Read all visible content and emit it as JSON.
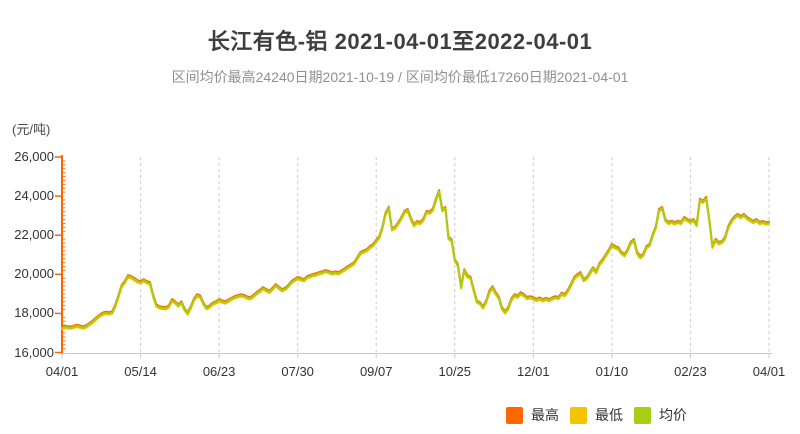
{
  "chart_data": {
    "type": "line",
    "title": "长江有色-铝 2021-04-01至2022-04-01",
    "subtitle": "区间均价最高24240日期2021-10-19 / 区间均价最低17260日期2021-04-01",
    "ylabel": "(元/吨)",
    "ylim": [
      16000,
      26000
    ],
    "y_tick_step": 2000,
    "y_tick_labels": [
      "16,000",
      "18,000",
      "20,000",
      "22,000",
      "24,000",
      "26,000"
    ],
    "x_tick_labels": [
      "04/01",
      "05/14",
      "06/23",
      "07/30",
      "09/07",
      "10/25",
      "12/01",
      "01/10",
      "02/23",
      "04/01"
    ],
    "x_tick_every_n_points": 25,
    "grid": {
      "vertical_dashed": true,
      "horizontal": false
    },
    "legend_position": "bottom-right",
    "axis_colors": {
      "y_axis": "#ff6600",
      "x_axis": "#cccccc",
      "gridline": "#cccccc"
    },
    "annotations": {
      "max_avg": {
        "value": 24240,
        "date": "2021-10-19"
      },
      "min_avg": {
        "value": 17260,
        "date": "2021-04-01"
      }
    },
    "spread_estimate": 60,
    "series": [
      {
        "key": "high",
        "name": "最高",
        "color": "#ff6600",
        "derived": "avg_values + spread_estimate"
      },
      {
        "key": "low",
        "name": "最低",
        "color": "#f5c400",
        "derived": "avg_values - spread_estimate"
      },
      {
        "key": "avg",
        "name": "均价",
        "color": "#a6ce13",
        "derived": "avg_values"
      }
    ],
    "avg_values": [
      17260,
      17310,
      17280,
      17270,
      17330,
      17360,
      17300,
      17280,
      17360,
      17480,
      17600,
      17750,
      17880,
      17980,
      18030,
      18000,
      18050,
      18400,
      18900,
      19400,
      19600,
      19900,
      19850,
      19750,
      19640,
      19590,
      19690,
      19590,
      19540,
      18900,
      18410,
      18310,
      18280,
      18260,
      18350,
      18670,
      18560,
      18400,
      18560,
      18200,
      18000,
      18300,
      18700,
      18920,
      18850,
      18500,
      18260,
      18350,
      18500,
      18560,
      18670,
      18600,
      18560,
      18650,
      18750,
      18820,
      18880,
      18920,
      18880,
      18800,
      18770,
      18900,
      19030,
      19150,
      19280,
      19180,
      19100,
      19250,
      19440,
      19310,
      19180,
      19250,
      19390,
      19590,
      19700,
      19800,
      19750,
      19690,
      19850,
      19900,
      19960,
      20000,
      20060,
      20100,
      20160,
      20100,
      20040,
      20090,
      20050,
      20150,
      20250,
      20360,
      20460,
      20560,
      20820,
      21080,
      21160,
      21230,
      21380,
      21490,
      21700,
      21900,
      22400,
      23100,
      23390,
      22300,
      22380,
      22600,
      22870,
      23180,
      23280,
      22850,
      22500,
      22670,
      22620,
      22800,
      23180,
      23150,
      23300,
      23800,
      24240,
      23280,
      23390,
      21850,
      21740,
      20720,
      20460,
      19330,
      20200,
      19900,
      19820,
      19200,
      18600,
      18520,
      18300,
      18600,
      19100,
      19330,
      19030,
      18800,
      18260,
      18050,
      18260,
      18700,
      18920,
      18850,
      19030,
      18920,
      18780,
      18820,
      18770,
      18680,
      18760,
      18670,
      18740,
      18670,
      18760,
      18820,
      18780,
      19000,
      18930,
      19150,
      19450,
      19800,
      19950,
      20050,
      19700,
      19800,
      20050,
      20300,
      20100,
      20500,
      20700,
      20950,
      21200,
      21490,
      21380,
      21320,
      21100,
      20970,
      21230,
      21600,
      21740,
      21100,
      20870,
      21000,
      21390,
      21490,
      22000,
      22410,
      23280,
      23390,
      22770,
      22620,
      22680,
      22600,
      22680,
      22620,
      22870,
      22770,
      22680,
      22770,
      22510,
      23800,
      23700,
      23900,
      22770,
      21400,
      21750,
      21590,
      21640,
      21850,
      22400,
      22700,
      22900,
      23030,
      22920,
      23030,
      22870,
      22770,
      22670,
      22770,
      22620,
      22670,
      22600,
      22630
    ]
  }
}
